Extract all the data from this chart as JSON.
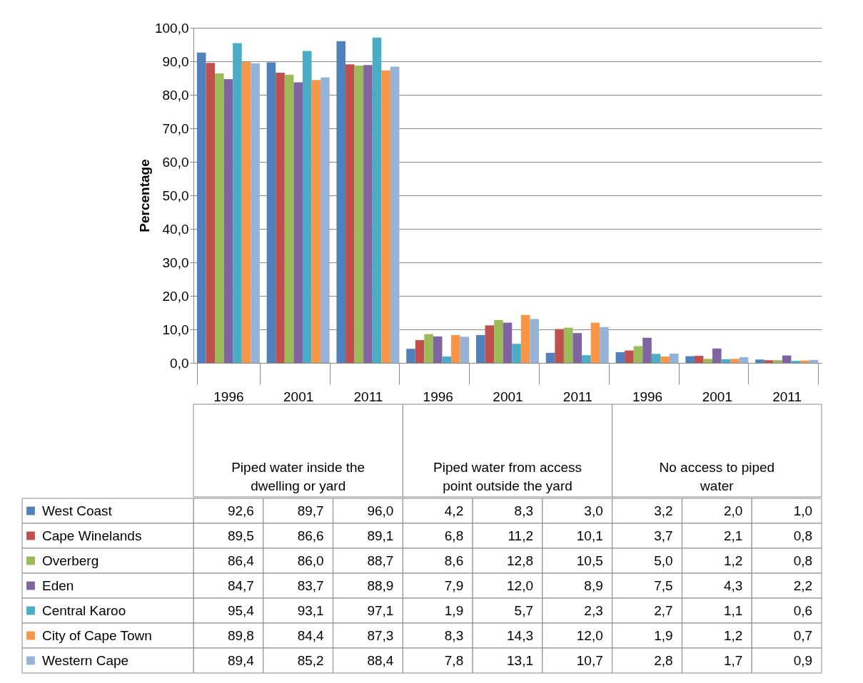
{
  "chart_data": {
    "type": "bar",
    "ylabel": "Percentage",
    "categories": [
      "1996",
      "2001",
      "2011",
      "1996",
      "2001",
      "2011",
      "1996",
      "2001",
      "2011"
    ],
    "annotations": [
      "Piped water inside the dwelling or yard",
      "Piped water from access point outside the yard",
      "No access to piped water"
    ],
    "ylim": [
      0,
      100
    ],
    "yticks": [
      {
        "value": 0,
        "label": "0,0"
      },
      {
        "value": 10,
        "label": "10,0"
      },
      {
        "value": 20,
        "label": "20,0"
      },
      {
        "value": 30,
        "label": "30,0"
      },
      {
        "value": 40,
        "label": "40,0"
      },
      {
        "value": 50,
        "label": "50,0"
      },
      {
        "value": 60,
        "label": "60,0"
      },
      {
        "value": 70,
        "label": "70,0"
      },
      {
        "value": 80,
        "label": "80,0"
      },
      {
        "value": 90,
        "label": "90,0"
      },
      {
        "value": 100,
        "label": "100,0"
      }
    ],
    "grid": "y",
    "legend": "bottom",
    "series": [
      {
        "name": "West Coast",
        "color": "#4f81bd",
        "values": [
          92.6,
          89.7,
          96.0,
          4.2,
          8.3,
          3.0,
          3.2,
          2.0,
          1.0
        ],
        "value_labels": [
          "92,6",
          "89,7",
          "96,0",
          "4,2",
          "8,3",
          "3,0",
          "3,2",
          "2,0",
          "1,0"
        ]
      },
      {
        "name": "Cape Winelands",
        "color": "#c0504d",
        "values": [
          89.5,
          86.6,
          89.1,
          6.8,
          11.2,
          10.1,
          3.7,
          2.1,
          0.8
        ],
        "value_labels": [
          "89,5",
          "86,6",
          "89,1",
          "6,8",
          "11,2",
          "10,1",
          "3,7",
          "2,1",
          "0,8"
        ]
      },
      {
        "name": "Overberg",
        "color": "#9bbb59",
        "values": [
          86.4,
          86.0,
          88.7,
          8.6,
          12.8,
          10.5,
          5.0,
          1.2,
          0.8
        ],
        "value_labels": [
          "86,4",
          "86,0",
          "88,7",
          "8,6",
          "12,8",
          "10,5",
          "5,0",
          "1,2",
          "0,8"
        ]
      },
      {
        "name": "Eden",
        "color": "#8064a2",
        "values": [
          84.7,
          83.7,
          88.9,
          7.9,
          12.0,
          8.9,
          7.5,
          4.3,
          2.2
        ],
        "value_labels": [
          "84,7",
          "83,7",
          "88,9",
          "7,9",
          "12,0",
          "8,9",
          "7,5",
          "4,3",
          "2,2"
        ]
      },
      {
        "name": "Central Karoo",
        "color": "#4bacc6",
        "values": [
          95.4,
          93.1,
          97.1,
          1.9,
          5.7,
          2.3,
          2.7,
          1.1,
          0.6
        ],
        "value_labels": [
          "95,4",
          "93,1",
          "97,1",
          "1,9",
          "5,7",
          "2,3",
          "2,7",
          "1,1",
          "0,6"
        ]
      },
      {
        "name": "City of Cape Town",
        "color": "#f79646",
        "values": [
          89.8,
          84.4,
          87.3,
          8.3,
          14.3,
          12.0,
          1.9,
          1.2,
          0.7
        ],
        "value_labels": [
          "89,8",
          "84,4",
          "87,3",
          "8,3",
          "14,3",
          "12,0",
          "1,9",
          "1,2",
          "0,7"
        ]
      },
      {
        "name": "Western Cape",
        "color": "#95b3d7",
        "values": [
          89.4,
          85.2,
          88.4,
          7.8,
          13.1,
          10.7,
          2.8,
          1.7,
          0.9
        ],
        "value_labels": [
          "89,4",
          "85,2",
          "88,4",
          "7,8",
          "13,1",
          "10,7",
          "2,8",
          "1,7",
          "0,9"
        ]
      }
    ]
  }
}
